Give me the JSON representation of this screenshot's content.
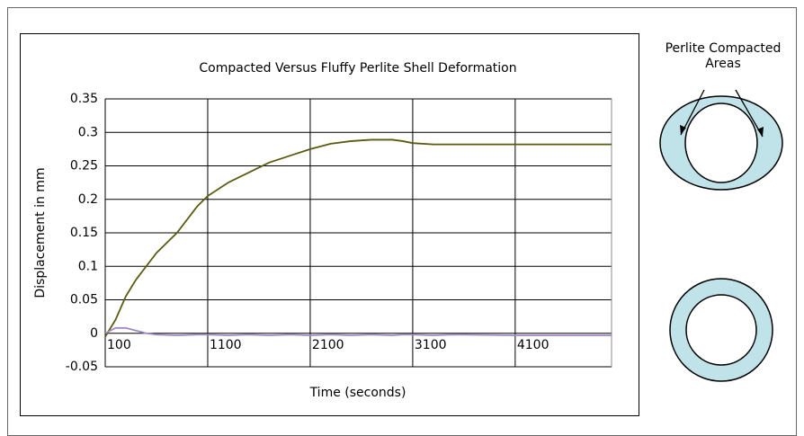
{
  "chart_data": {
    "type": "line",
    "title": "Compacted Versus Fluffy Perlite Shell Deformation",
    "x_label": "Time (seconds)",
    "y_label": "Displacement in mm",
    "x": [
      100,
      200,
      300,
      400,
      500,
      600,
      800,
      1000,
      1100,
      1300,
      1500,
      1700,
      1900,
      2100,
      2300,
      2500,
      2700,
      2900,
      3000,
      3100,
      3300,
      3500,
      4100,
      5040
    ],
    "series": [
      {
        "color": "#5b5a12",
        "values": [
          -0.005,
          0.02,
          0.055,
          0.08,
          0.1,
          0.12,
          0.15,
          0.19,
          0.205,
          0.225,
          0.24,
          0.255,
          0.265,
          0.275,
          0.283,
          0.287,
          0.289,
          0.289,
          0.287,
          0.284,
          0.282,
          0.282,
          0.282,
          0.282
        ]
      },
      {
        "color": "#a08ac0",
        "values": [
          0,
          0.008,
          0.008,
          0.004,
          0,
          -0.002,
          -0.003,
          -0.002,
          -0.002,
          -0.003,
          -0.002,
          -0.003,
          -0.002,
          -0.003,
          -0.002,
          -0.003,
          -0.002,
          -0.003,
          -0.002,
          -0.002,
          -0.003,
          -0.002,
          -0.003,
          -0.003
        ]
      }
    ],
    "xlim": [
      100,
      5040
    ],
    "xticks": [
      100,
      1100,
      2100,
      3100,
      4100
    ],
    "ylim": [
      -0.05,
      0.35
    ],
    "yticks": [
      -0.05,
      0,
      0.05,
      0.1,
      0.15,
      0.2,
      0.25,
      0.3,
      0.35
    ],
    "grid": true
  },
  "diagram": {
    "label": "Perlite Compacted Areas"
  }
}
